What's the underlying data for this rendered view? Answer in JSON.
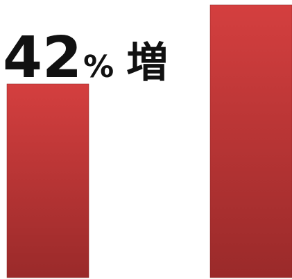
{
  "chart_data": {
    "type": "bar",
    "categories": [
      "",
      ""
    ],
    "values": [
      71,
      100
    ],
    "ylim": [
      0,
      100
    ],
    "annotation": {
      "number": "42",
      "percent": "%",
      "suffix": "増"
    },
    "colors": {
      "bar_top": "#d43f3f",
      "bar_bottom": "#9a2a2a",
      "bar_edge": "#8a2222",
      "text": "#111111"
    }
  }
}
